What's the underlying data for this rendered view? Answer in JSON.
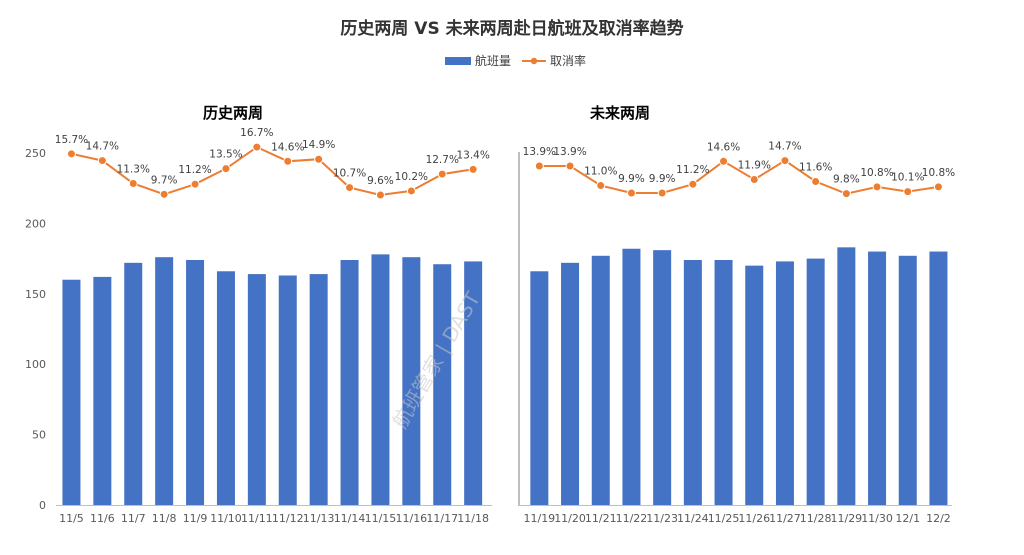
{
  "title": "历史两周 VS 未来两周赴日航班及取消率趋势",
  "legend": [
    {
      "name": "航班量",
      "type": "bar",
      "color": "#4472c4"
    },
    {
      "name": "取消率",
      "type": "line",
      "color": "#ed7d31"
    }
  ],
  "watermark": "航班管家 | DAST",
  "chart_data": [
    {
      "type": "bar",
      "title": "历史两周",
      "categories": [
        "11/5",
        "11/6",
        "11/7",
        "11/8",
        "11/9",
        "11/10",
        "11/11",
        "11/12",
        "11/13",
        "11/14",
        "11/15",
        "11/16",
        "11/17",
        "11/18"
      ],
      "yticks": [
        "0",
        "50",
        "100",
        "150",
        "200",
        "250"
      ],
      "ylim": [
        0,
        250
      ],
      "series": [
        {
          "name": "航班量",
          "type": "bar",
          "values": [
            160,
            162,
            172,
            176,
            174,
            166,
            164,
            163,
            164,
            174,
            178,
            176,
            171,
            173
          ]
        },
        {
          "name": "取消率",
          "type": "line",
          "values": [
            15.7,
            14.7,
            11.3,
            9.7,
            11.2,
            13.5,
            16.7,
            14.6,
            14.9,
            10.7,
            9.6,
            10.2,
            12.7,
            13.4
          ],
          "labels": [
            "15.7%",
            "14.7%",
            "11.3%",
            "9.7%",
            "11.2%",
            "13.5%",
            "16.7%",
            "14.6%",
            "14.9%",
            "10.7%",
            "9.6%",
            "10.2%",
            "12.7%",
            "13.4%"
          ]
        }
      ]
    },
    {
      "type": "bar",
      "title": "未来两周",
      "categories": [
        "11/19",
        "11/20",
        "11/21",
        "11/22",
        "11/23",
        "11/24",
        "11/25",
        "11/26",
        "11/27",
        "11/28",
        "11/29",
        "11/30",
        "12/1",
        "12/2"
      ],
      "ylim": [
        0,
        250
      ],
      "series": [
        {
          "name": "航班量",
          "type": "bar",
          "values": [
            166,
            172,
            177,
            182,
            181,
            174,
            174,
            170,
            173,
            175,
            183,
            180,
            177,
            180
          ]
        },
        {
          "name": "取消率",
          "type": "line",
          "values": [
            13.9,
            13.9,
            11.0,
            9.9,
            9.9,
            11.2,
            14.6,
            11.9,
            14.7,
            11.6,
            9.8,
            10.8,
            10.1,
            10.8
          ],
          "labels": [
            "13.9%",
            "13.9%",
            "11.0%",
            "9.9%",
            "9.9%",
            "11.2%",
            "14.6%",
            "11.9%",
            "14.7%",
            "11.6%",
            "9.8%",
            "10.8%",
            "10.1%",
            "10.8%"
          ]
        }
      ]
    }
  ]
}
